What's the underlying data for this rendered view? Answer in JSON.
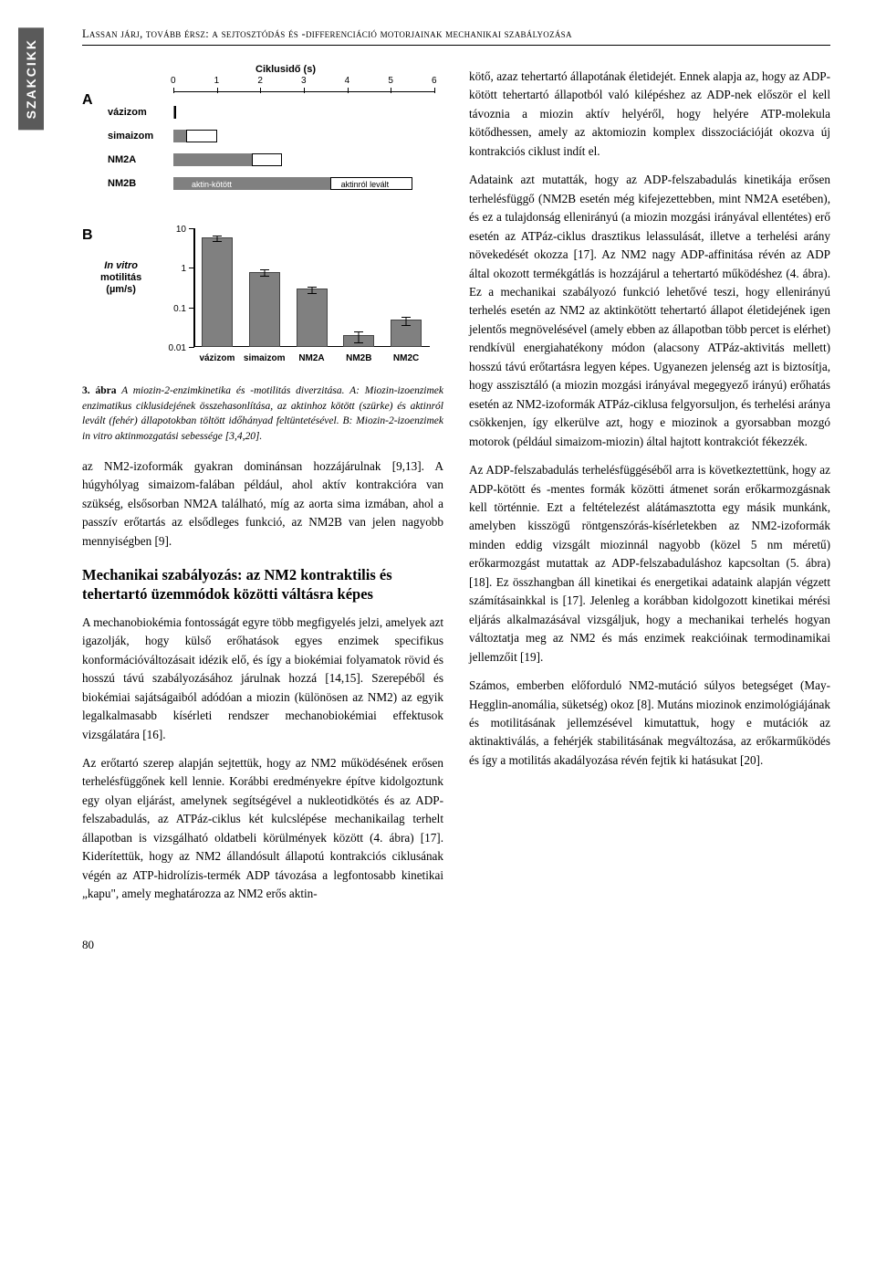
{
  "side_tab": "SZAKCIKK",
  "running_header": "Lassan járj, tovább érsz: a sejtosztódás és -differenciáció motorjainak mechanikai szabályozása",
  "page_number": "80",
  "figure3": {
    "panelA": {
      "axis_title": "Ciklusidő (s)",
      "xmin": 0,
      "xmax": 6,
      "ticks": [
        0,
        1,
        2,
        3,
        4,
        5,
        6
      ],
      "rows": [
        {
          "label": "vázizom",
          "aktin_start": 0,
          "aktin_end": 0.015,
          "levalt_end": 0.04
        },
        {
          "label": "simaizom",
          "aktin_start": 0,
          "aktin_end": 0.3,
          "levalt_end": 1.0
        },
        {
          "label": "NM2A",
          "aktin_start": 0,
          "aktin_end": 1.8,
          "levalt_end": 2.5
        },
        {
          "label": "NM2B",
          "aktin_start": 0,
          "aktin_end": 3.6,
          "levalt_end": 5.5
        }
      ],
      "aktin_label": "aktin-kötött",
      "levalt_label": "aktinról levált",
      "bar_fill": "#808080",
      "bar_empty_border": "#000000"
    },
    "panelB": {
      "ylabel_line1": "In vitro",
      "ylabel_line2": "motilitás",
      "ylabel_line3": "(µm/s)",
      "yticks": [
        0.01,
        0.1,
        1,
        10
      ],
      "ytick_labels": [
        "0.01",
        "0.1",
        "1",
        "10"
      ],
      "scale": "log",
      "categories": [
        "vázizom",
        "simaizom",
        "NM2A",
        "NM2B",
        "NM2C"
      ],
      "values": [
        6,
        0.8,
        0.3,
        0.02,
        0.05
      ],
      "errors": [
        1.0,
        0.15,
        0.06,
        0.006,
        0.012
      ],
      "bar_color": "#808080"
    },
    "caption_lead": "3. ábra",
    "caption_body": "A miozin-2-enzimkinetika és -motilitás diverzitása. A: Miozin-izoenzimek enzimatikus ciklusidejének összehasonlítása, az aktinhoz kötött (szürke) és aktinról levált (fehér) állapotokban töltött időhányad feltüntetésével. B: Miozin-2-izoenzimek in vitro aktinmozgatási sebessége [3,4,20]."
  },
  "left_col": {
    "p1": "az NM2-izoformák gyakran dominánsan hozzájárulnak [9,13]. A húgyhólyag simaizom-falában például, ahol aktív kontrakcióra van szükség, elsősorban NM2A található, míg az aorta sima izmában, ahol a passzív erőtartás az elsődleges funkció, az NM2B van jelen nagyobb mennyiségben [9].",
    "heading": "Mechanikai szabályozás: az NM2 kontraktilis és tehertartó üzemmódok közötti váltásra képes",
    "p2": "A mechanobiokémia fontosságát egyre több megfigyelés jelzi, amelyek azt igazolják, hogy külső erőhatások egyes enzimek specifikus konformációváltozásait idézik elő, és így a biokémiai folyamatok rövid és hosszú távú szabályozásához járulnak hozzá [14,15]. Szerepéből és biokémiai sajátságaiból adódóan a miozin (különösen az NM2) az egyik legalkalmasabb kísérleti rendszer mechanobiokémiai effektusok vizsgálatára [16].",
    "p3": "Az erőtartó szerep alapján sejtettük, hogy az NM2 működésének erősen terhelésfüggőnek kell lennie. Korábbi eredményekre építve kidolgoztunk egy olyan eljárást, amelynek segítségével a nukleotidkötés és az ADP-felszabadulás, az ATPáz-ciklus két kulcslépése mechanikailag terhelt állapotban is vizsgálható oldatbeli körülmények között (4. ábra) [17]. Kiderítettük, hogy az NM2 állandósult állapotú kontrakciós ciklusának végén az ATP-hidrolízis-termék ADP távozása a legfontosabb kinetikai „kapu\", amely meghatározza az NM2 erős aktin-"
  },
  "right_col": {
    "p1": "kötő, azaz tehertartó állapotának életidejét. Ennek alapja az, hogy az ADP-kötött tehertartó állapotból való kilépéshez az ADP-nek először el kell távoznia a miozin aktív helyéről, hogy helyére ATP-molekula kötődhessen, amely az aktomiozin komplex disszociációját okozva új kontrakciós ciklust indít el.",
    "p2": "Adataink azt mutatták, hogy az ADP-felszabadulás kinetikája erősen terhelésfüggő (NM2B esetén még kifejezettebben, mint NM2A esetében), és ez a tulajdonság ellenirányú (a miozin mozgási irányával ellentétes) erő esetén az ATPáz-ciklus drasztikus lelassulását, illetve a terhelési arány növekedését okozza [17]. Az NM2 nagy ADP-affinitása révén az ADP által okozott termékgátlás is hozzájárul a tehertartó működéshez (4. ábra). Ez a mechanikai szabályozó funkció lehetővé teszi, hogy ellenirányú terhelés esetén az NM2 az aktinkötött tehertartó állapot életidejének igen jelentős megnövelésével (amely ebben az állapotban több percet is elérhet) rendkívül energiahatékony módon (alacsony ATPáz-aktivitás mellett) hosszú távú erőtartásra legyen képes. Ugyanezen jelenség azt is biztosítja, hogy asszisztáló (a miozin mozgási irányával megegyező irányú) erőhatás esetén az NM2-izoformák ATPáz-ciklusa felgyorsuljon, és terhelési aránya csökkenjen, így elkerülve azt, hogy e miozinok a gyorsabban mozgó motorok (például simaizom-miozin) által hajtott kontrakciót fékezzék.",
    "p3": "Az ADP-felszabadulás terhelésfüggéséből arra is következtettünk, hogy az ADP-kötött és -mentes formák közötti átmenet során erőkarmozgásnak kell történnie. Ezt a feltételezést alátámasztotta egy másik munkánk, amelyben kisszögű röntgenszórás-kísérletekben az NM2-izoformák minden eddig vizsgált miozinnál nagyobb (közel 5 nm méretű) erőkarmozgást mutattak az ADP-felszabaduláshoz kapcsoltan (5. ábra) [18]. Ez összhangban áll kinetikai és energetikai adataink alapján végzett számításainkkal is [17]. Jelenleg a korábban kidolgozott kinetikai mérési eljárás alkalmazásával vizsgáljuk, hogy a mechanikai terhelés hogyan változtatja meg az NM2 és más enzimek reakcióinak termodinamikai jellemzőit [19].",
    "p4": "Számos, emberben előforduló NM2-mutáció súlyos betegséget (May-Hegglin-anomália, süketség) okoz [8]. Mutáns miozinok enzimológiájának és motilitásának jellemzésével kimutattuk, hogy e mutációk az aktinaktiválás, a fehérjék stabilitásának megváltozása, az erőkarműködés és így a motilitás akadályozása révén fejtik ki hatásukat [20]."
  }
}
